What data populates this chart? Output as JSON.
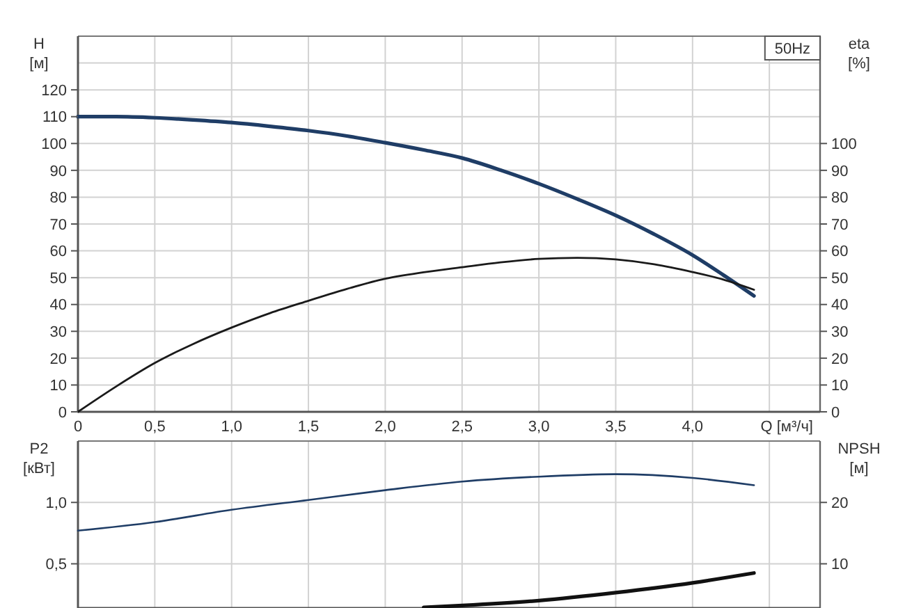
{
  "chart_data": [
    {
      "type": "line",
      "annotations": [
        "50Hz"
      ],
      "xlabel": "Q [м³/ч]",
      "ylabel": "H [м]",
      "y2label": "eta [%]",
      "xlim": [
        0,
        4.83
      ],
      "xticks": [
        0,
        {
          "value": 0.5,
          "label": "0,5"
        },
        {
          "value": 1.0,
          "label": "1,0"
        },
        {
          "value": 1.5,
          "label": "1,5"
        },
        {
          "value": 2.0,
          "label": "2,0"
        },
        {
          "value": 2.5,
          "label": "2,5"
        },
        {
          "value": 3.0,
          "label": "3,0"
        },
        {
          "value": 3.5,
          "label": "3,5"
        },
        {
          "value": 4.0,
          "label": "4,0"
        },
        {
          "value": 4.5,
          "label": null
        }
      ],
      "ylim": [
        0,
        140
      ],
      "yticks": [
        0,
        10,
        20,
        30,
        40,
        50,
        60,
        70,
        80,
        90,
        100,
        110,
        120,
        {
          "value": 130,
          "label": null
        }
      ],
      "y2lim": [
        0,
        140
      ],
      "y2ticks": [
        0,
        10,
        20,
        30,
        40,
        50,
        60,
        70,
        80,
        90,
        100
      ],
      "grid": true,
      "series": [
        {
          "color": "#1f3d66",
          "x": [
            0,
            0.25,
            0.5,
            0.75,
            1.0,
            1.25,
            1.5,
            1.75,
            2.0,
            2.25,
            2.5,
            2.75,
            3.0,
            3.25,
            3.5,
            3.75,
            4.0,
            4.2,
            4.4
          ],
          "values": [
            110,
            110,
            109.6,
            108.8,
            107.8,
            106.4,
            104.8,
            102.8,
            100.3,
            97.6,
            94.6,
            90.1,
            85,
            79.3,
            73.2,
            66.2,
            58.4,
            51,
            43.2
          ]
        },
        {
          "color": "#1a1a1a",
          "axis": "y2",
          "x": [
            0,
            0.25,
            0.5,
            0.75,
            1.0,
            1.25,
            1.5,
            1.75,
            2.0,
            2.25,
            2.5,
            2.75,
            3.0,
            3.25,
            3.5,
            3.75,
            4.0,
            4.2,
            4.4
          ],
          "values": [
            0,
            9.5,
            18.2,
            25.3,
            31.4,
            36.8,
            41.4,
            45.8,
            49.6,
            52,
            53.9,
            55.7,
            57,
            57.4,
            56.8,
            55,
            52.1,
            49.3,
            45.5
          ]
        }
      ]
    },
    {
      "type": "line",
      "ylabel": "P2 [кВт]",
      "y2label": "NPSH [м]",
      "xlim": [
        0,
        4.83
      ],
      "xticks": [
        0,
        0.5,
        1.0,
        1.5,
        2.0,
        2.5,
        3.0,
        3.5,
        4.0,
        4.5
      ],
      "ylim": [
        0.14,
        1.5
      ],
      "yticks": [
        {
          "value": 0.5,
          "label": "0,5"
        },
        {
          "value": 1.0,
          "label": "1,0"
        }
      ],
      "y2lim": [
        2.8,
        30
      ],
      "y2ticks": [
        10,
        20
      ],
      "tick_labels": "y",
      "grid": true,
      "series": [
        {
          "color": "#1f3d66",
          "x": [
            0,
            0.5,
            1.0,
            1.5,
            2.0,
            2.5,
            3.0,
            3.5,
            4.0,
            4.4
          ],
          "values": [
            0.77,
            0.84,
            0.94,
            1.02,
            1.1,
            1.17,
            1.21,
            1.23,
            1.2,
            1.14
          ]
        },
        {
          "color": "#111111",
          "axis": "y2",
          "x": [
            2.25,
            2.5,
            3.0,
            3.5,
            4.0,
            4.4
          ],
          "values": [
            2.9,
            3.2,
            4.0,
            5.3,
            6.9,
            8.5
          ]
        }
      ]
    }
  ]
}
